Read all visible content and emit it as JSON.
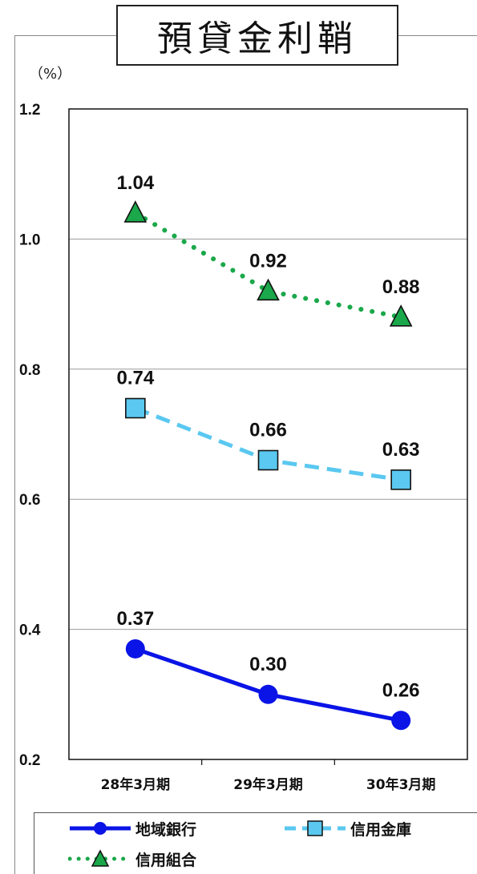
{
  "chart_data": {
    "type": "line",
    "title": "預貸金利鞘",
    "ylabel": "（%）",
    "categories": [
      "28年3月期",
      "29年3月期",
      "30年3月期"
    ],
    "ylim": [
      0.2,
      1.2
    ],
    "yticks": [
      "0.2",
      "0.4",
      "0.6",
      "0.8",
      "1.0",
      "1.2"
    ],
    "grid": true,
    "legend_position": "bottom",
    "series": [
      {
        "name": "地域銀行",
        "values": [
          0.37,
          0.3,
          0.26
        ],
        "labels": [
          "0.37",
          "0.30",
          "0.26"
        ],
        "color": "#0a14e6",
        "marker": "circle",
        "line": "solid"
      },
      {
        "name": "信用金庫",
        "values": [
          0.74,
          0.66,
          0.63
        ],
        "labels": [
          "0.74",
          "0.66",
          "0.63"
        ],
        "color": "#5ac8f0",
        "marker": "square",
        "line": "dashed"
      },
      {
        "name": "信用組合",
        "values": [
          1.04,
          0.92,
          0.88
        ],
        "labels": [
          "1.04",
          "0.92",
          "0.88"
        ],
        "color": "#1aa84a",
        "marker": "triangle",
        "line": "dotted"
      }
    ]
  }
}
